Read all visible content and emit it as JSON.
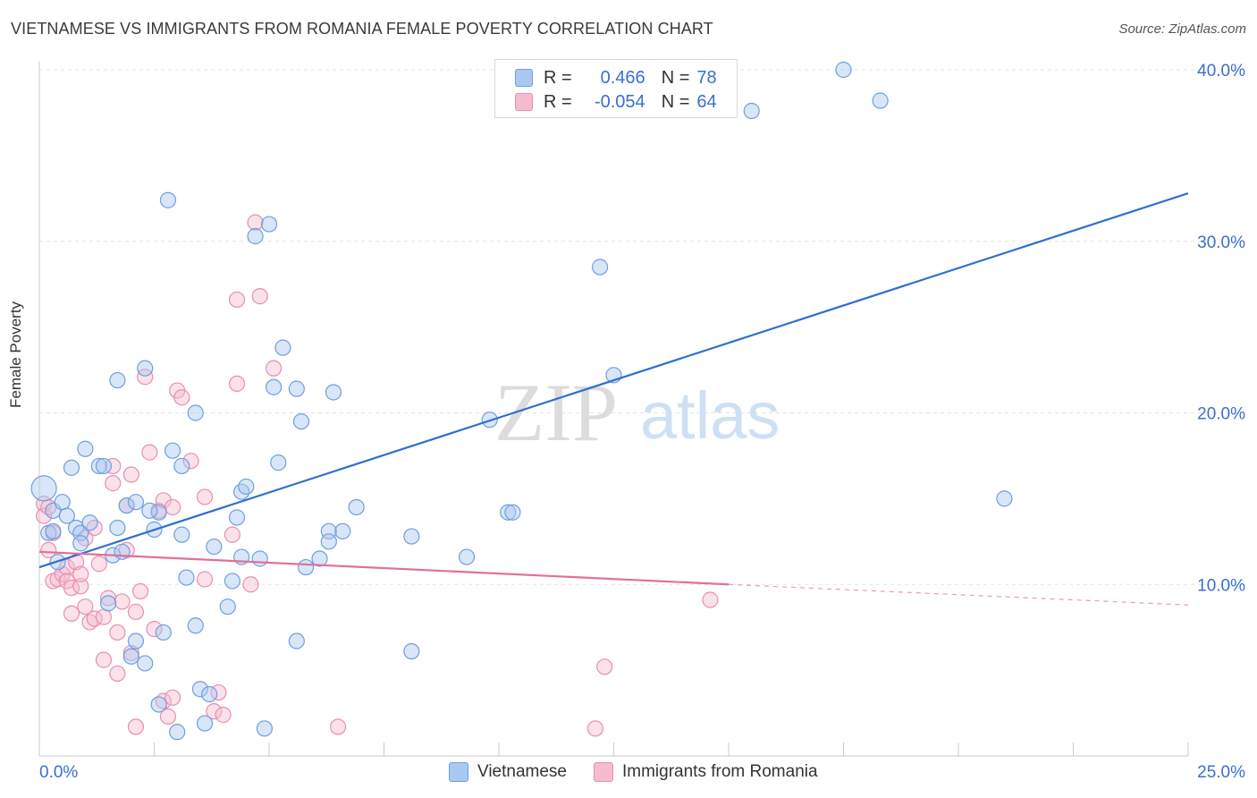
{
  "title": "VIETNAMESE VS IMMIGRANTS FROM ROMANIA FEMALE POVERTY CORRELATION CHART",
  "source": "Source: ZipAtlas.com",
  "watermark": {
    "zip": "ZIP",
    "atlas": "atlas"
  },
  "legend": {
    "r_label": "R =",
    "n_label": "N =",
    "series1": {
      "r": "0.466",
      "n": "78"
    },
    "series2": {
      "r": "-0.054",
      "n": "64"
    }
  },
  "bottom_legend": {
    "series1": "Vietnamese",
    "series2": "Immigrants from Romania"
  },
  "colors": {
    "blue_fill": "#aac8f0",
    "blue_stroke": "#6e9fe0",
    "blue_line": "#2f6fd0",
    "pink_fill": "#f5bcd0",
    "pink_stroke": "#e98fb0",
    "pink_line": "#e0709a",
    "axis_text": "#3a6fd1",
    "grid": "#e3e3e3"
  },
  "chart_data": {
    "type": "scatter",
    "title": "VIETNAMESE VS IMMIGRANTS FROM ROMANIA FEMALE POVERTY CORRELATION CHART",
    "xlabel": "",
    "ylabel": "Female Poverty",
    "xlim": [
      0,
      25
    ],
    "ylim": [
      0,
      40
    ],
    "x_tick_labels": [
      "0.0%",
      "25.0%"
    ],
    "y_ticks": [
      10,
      20,
      30,
      40
    ],
    "y_tick_labels": [
      "10.0%",
      "20.0%",
      "30.0%",
      "40.0%"
    ],
    "grid": true,
    "series": [
      {
        "name": "Vietnamese",
        "r": 0.466,
        "n": 78,
        "trend": {
          "x0": 0,
          "y0": 11.0,
          "x1": 25,
          "y1": 32.8,
          "dashed_from": null
        },
        "points": [
          [
            0.1,
            15.6
          ],
          [
            0.3,
            14.3
          ],
          [
            0.2,
            13.0
          ],
          [
            0.3,
            13.1
          ],
          [
            0.4,
            11.3
          ],
          [
            0.5,
            14.8
          ],
          [
            0.6,
            14.0
          ],
          [
            0.7,
            16.8
          ],
          [
            0.8,
            13.3
          ],
          [
            0.9,
            13.0
          ],
          [
            0.9,
            12.4
          ],
          [
            1.0,
            17.9
          ],
          [
            1.1,
            13.6
          ],
          [
            1.3,
            16.9
          ],
          [
            1.4,
            16.9
          ],
          [
            1.5,
            8.9
          ],
          [
            1.6,
            11.7
          ],
          [
            1.7,
            13.3
          ],
          [
            1.7,
            21.9
          ],
          [
            1.8,
            11.9
          ],
          [
            1.9,
            14.6
          ],
          [
            2.1,
            6.7
          ],
          [
            2.0,
            5.8
          ],
          [
            2.1,
            14.8
          ],
          [
            2.3,
            5.4
          ],
          [
            2.3,
            22.6
          ],
          [
            2.5,
            13.2
          ],
          [
            2.6,
            14.2
          ],
          [
            2.6,
            3.0
          ],
          [
            2.7,
            7.2
          ],
          [
            2.8,
            32.4
          ],
          [
            2.9,
            17.8
          ],
          [
            3.0,
            1.4
          ],
          [
            3.1,
            12.9
          ],
          [
            3.1,
            16.9
          ],
          [
            3.2,
            10.4
          ],
          [
            3.4,
            20.0
          ],
          [
            3.4,
            7.6
          ],
          [
            3.5,
            3.9
          ],
          [
            3.6,
            1.9
          ],
          [
            3.7,
            3.6
          ],
          [
            3.8,
            12.2
          ],
          [
            4.1,
            8.7
          ],
          [
            4.2,
            10.2
          ],
          [
            4.3,
            13.9
          ],
          [
            4.4,
            15.4
          ],
          [
            4.4,
            11.6
          ],
          [
            4.5,
            15.7
          ],
          [
            4.7,
            30.3
          ],
          [
            4.8,
            11.5
          ],
          [
            4.9,
            1.6
          ],
          [
            5.0,
            31.0
          ],
          [
            5.1,
            21.5
          ],
          [
            5.2,
            17.1
          ],
          [
            5.3,
            23.8
          ],
          [
            5.6,
            6.7
          ],
          [
            5.6,
            21.4
          ],
          [
            5.7,
            19.5
          ],
          [
            5.8,
            11.0
          ],
          [
            6.1,
            11.5
          ],
          [
            6.3,
            13.1
          ],
          [
            6.3,
            12.5
          ],
          [
            6.4,
            21.2
          ],
          [
            6.6,
            13.1
          ],
          [
            6.9,
            14.5
          ],
          [
            8.1,
            6.1
          ],
          [
            8.1,
            12.8
          ],
          [
            9.3,
            11.6
          ],
          [
            9.8,
            19.6
          ],
          [
            10.2,
            14.2
          ],
          [
            10.3,
            14.2
          ],
          [
            12.2,
            28.5
          ],
          [
            12.5,
            22.2
          ],
          [
            15.5,
            37.6
          ],
          [
            17.5,
            40.0
          ],
          [
            18.3,
            38.2
          ],
          [
            21.0,
            15.0
          ],
          [
            2.4,
            14.3
          ]
        ]
      },
      {
        "name": "Immigrants from Romania",
        "r": -0.054,
        "n": 64,
        "trend": {
          "x0": 0,
          "y0": 11.9,
          "x1": 15,
          "y1": 10.0,
          "dashed_to_x": 25,
          "dashed_to_y": 8.8
        },
        "points": [
          [
            0.1,
            14.7
          ],
          [
            0.1,
            14.0
          ],
          [
            0.2,
            12.0
          ],
          [
            0.3,
            13.0
          ],
          [
            0.3,
            10.2
          ],
          [
            0.4,
            10.3
          ],
          [
            0.5,
            10.6
          ],
          [
            0.6,
            11.0
          ],
          [
            0.6,
            10.2
          ],
          [
            0.7,
            9.8
          ],
          [
            0.7,
            8.3
          ],
          [
            0.8,
            11.3
          ],
          [
            0.9,
            9.9
          ],
          [
            0.9,
            10.6
          ],
          [
            1.0,
            8.7
          ],
          [
            1.0,
            12.7
          ],
          [
            1.1,
            7.8
          ],
          [
            1.2,
            13.3
          ],
          [
            1.2,
            8.0
          ],
          [
            1.3,
            11.2
          ],
          [
            1.4,
            8.1
          ],
          [
            1.4,
            5.6
          ],
          [
            1.5,
            9.2
          ],
          [
            1.6,
            15.9
          ],
          [
            1.6,
            16.9
          ],
          [
            1.7,
            4.8
          ],
          [
            1.7,
            7.2
          ],
          [
            1.8,
            9.0
          ],
          [
            1.9,
            12.0
          ],
          [
            1.9,
            14.6
          ],
          [
            2.0,
            6.0
          ],
          [
            2.0,
            16.4
          ],
          [
            2.1,
            1.7
          ],
          [
            2.1,
            8.4
          ],
          [
            2.2,
            9.6
          ],
          [
            2.3,
            22.1
          ],
          [
            2.4,
            17.7
          ],
          [
            2.5,
            7.4
          ],
          [
            2.6,
            14.3
          ],
          [
            2.7,
            14.9
          ],
          [
            2.7,
            3.2
          ],
          [
            2.8,
            2.3
          ],
          [
            2.9,
            14.5
          ],
          [
            2.9,
            3.4
          ],
          [
            3.0,
            21.3
          ],
          [
            3.1,
            20.9
          ],
          [
            3.3,
            17.2
          ],
          [
            3.6,
            15.1
          ],
          [
            3.6,
            10.3
          ],
          [
            3.8,
            2.6
          ],
          [
            3.9,
            3.7
          ],
          [
            4.0,
            2.4
          ],
          [
            4.2,
            12.9
          ],
          [
            4.3,
            26.6
          ],
          [
            4.3,
            21.7
          ],
          [
            4.6,
            10.0
          ],
          [
            4.7,
            31.1
          ],
          [
            4.8,
            26.8
          ],
          [
            5.1,
            22.6
          ],
          [
            6.5,
            1.7
          ],
          [
            12.1,
            1.6
          ],
          [
            12.3,
            5.2
          ],
          [
            14.6,
            9.1
          ],
          [
            0.2,
            14.5
          ]
        ]
      }
    ]
  }
}
